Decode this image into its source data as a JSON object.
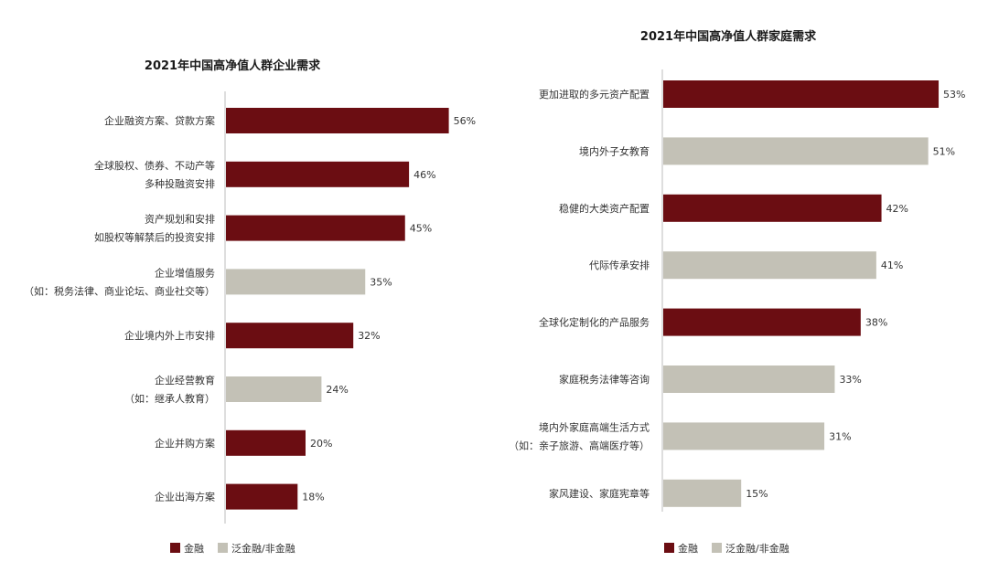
{
  "colors": {
    "finance": "#6b0d12",
    "non_finance": "#c3c1b6",
    "axis": "#bdbdbd"
  },
  "legend": {
    "finance": "金融",
    "non_finance": "泛金融/非金融"
  },
  "chart_data": [
    {
      "type": "bar",
      "orientation": "horizontal",
      "title": "2021年中国高净值人群企业需求",
      "value_unit": "%",
      "categories": [
        [
          "企业融资方案、贷款方案"
        ],
        [
          "全球股权、债券、不动产等",
          "多种投融资安排"
        ],
        [
          "资产规划和安排",
          "如股权等解禁后的投资安排"
        ],
        [
          "企业增值服务",
          "（如：税务法律、商业论坛、商业社交等）"
        ],
        [
          "企业境内外上市安排"
        ],
        [
          "企业经营教育",
          "（如：继承人教育）"
        ],
        [
          "企业并购方案"
        ],
        [
          "企业出海方案"
        ]
      ],
      "values": [
        56,
        46,
        45,
        35,
        32,
        24,
        20,
        18
      ],
      "labels": [
        "56%",
        "46%",
        "45%",
        "35%",
        "32%",
        "24%",
        "20%",
        "18%"
      ],
      "groups": [
        "finance",
        "finance",
        "finance",
        "non_finance",
        "finance",
        "non_finance",
        "finance",
        "finance"
      ],
      "legend": [
        "金融",
        "泛金融/非金融"
      ]
    },
    {
      "type": "bar",
      "orientation": "horizontal",
      "title": "2021年中国高净值人群家庭需求",
      "value_unit": "%",
      "categories": [
        [
          "更加进取的多元资产配置"
        ],
        [
          "境内外子女教育"
        ],
        [
          "稳健的大类资产配置"
        ],
        [
          "代际传承安排"
        ],
        [
          "全球化定制化的产品服务"
        ],
        [
          "家庭税务法律等咨询"
        ],
        [
          "境内外家庭高端生活方式",
          "（如：亲子旅游、高端医疗等）"
        ],
        [
          "家风建设、家庭宪章等"
        ]
      ],
      "values": [
        53,
        51,
        42,
        41,
        38,
        33,
        31,
        15
      ],
      "labels": [
        "53%",
        "51%",
        "42%",
        "41%",
        "38%",
        "33%",
        "31%",
        "15%"
      ],
      "groups": [
        "finance",
        "non_finance",
        "finance",
        "non_finance",
        "finance",
        "non_finance",
        "non_finance",
        "non_finance"
      ],
      "legend": [
        "金融",
        "泛金融/非金融"
      ]
    }
  ]
}
